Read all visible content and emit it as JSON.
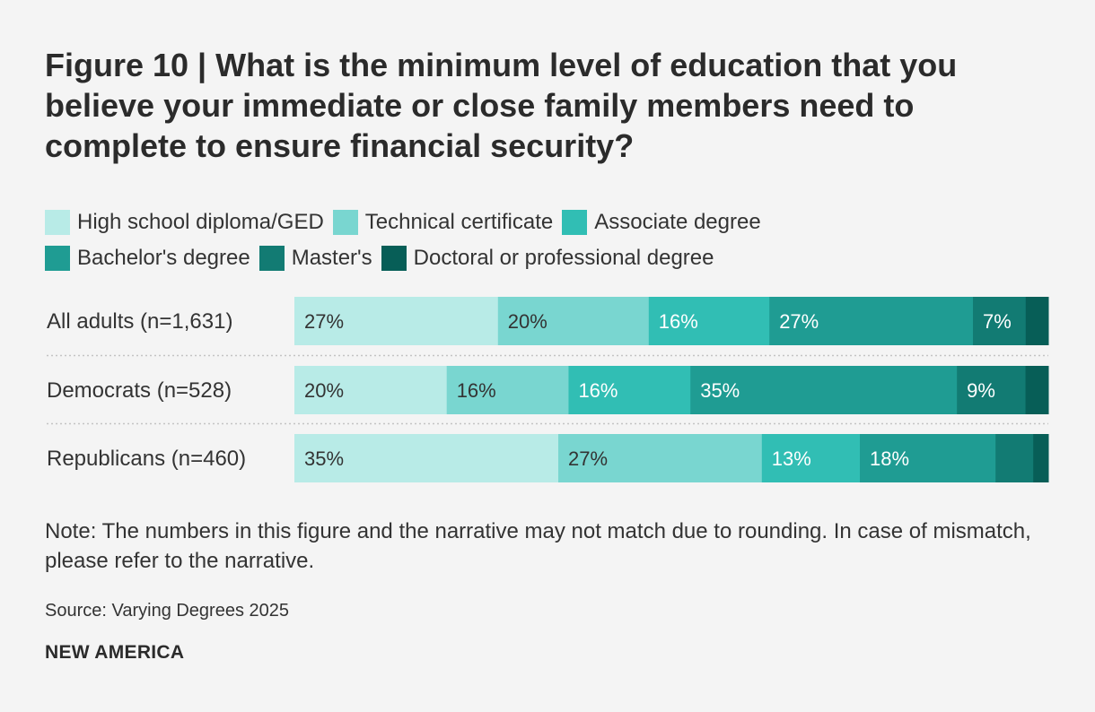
{
  "figure_title": "Figure 10 | What is the minimum level of education that you believe your immediate or close family members need to complete to ensure financial security?",
  "note": "Note: The numbers in this figure and the narrative may not match due to rounding. In case of mismatch, please refer to the narrative.",
  "source": "Source: Varying Degrees 2025",
  "brand": "NEW AMERICA",
  "chart_data": {
    "type": "bar",
    "orientation": "horizontal",
    "stacked": true,
    "value_unit": "%",
    "legend_position": "top",
    "grid": false,
    "xlim": [
      0,
      100
    ],
    "categories": [
      "All adults (n=1,631)",
      "Democrats (n=528)",
      "Republicans (n=460)"
    ],
    "series": [
      {
        "name": "High school diploma/GED",
        "color": "#b8ebe7",
        "text_color": "#333333",
        "values": [
          27,
          20,
          35
        ],
        "labels": [
          "27%",
          "20%",
          "35%"
        ]
      },
      {
        "name": "Technical certificate",
        "color": "#79d6d0",
        "text_color": "#333333",
        "values": [
          20,
          16,
          27
        ],
        "labels": [
          "20%",
          "16%",
          "27%"
        ]
      },
      {
        "name": "Associate degree",
        "color": "#31beb4",
        "text_color": "#ffffff",
        "values": [
          16,
          16,
          13
        ],
        "labels": [
          "16%",
          "16%",
          "13%"
        ]
      },
      {
        "name": "Bachelor's degree",
        "color": "#1f9c93",
        "text_color": "#ffffff",
        "values": [
          27,
          35,
          18
        ],
        "labels": [
          "27%",
          "35%",
          "18%"
        ]
      },
      {
        "name": "Master's",
        "color": "#127b73",
        "text_color": "#ffffff",
        "values": [
          7,
          9,
          5
        ],
        "labels": [
          "7%",
          "9%",
          ""
        ]
      },
      {
        "name": "Doctoral or professional degree",
        "color": "#075e57",
        "text_color": "#ffffff",
        "values": [
          3,
          3,
          2
        ],
        "labels": [
          "",
          "",
          ""
        ]
      }
    ]
  }
}
